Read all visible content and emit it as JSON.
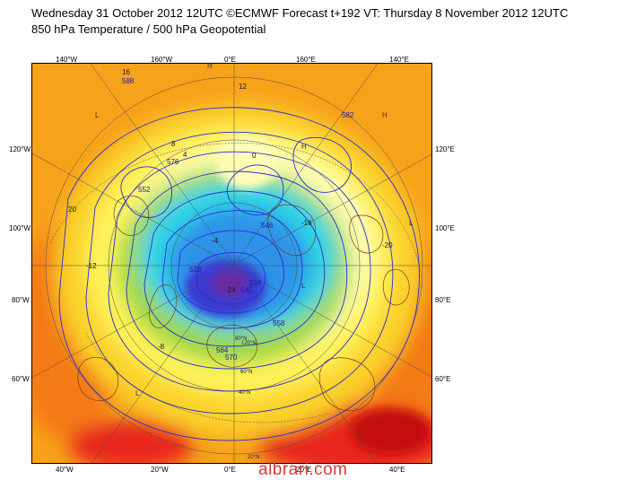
{
  "header": {
    "title_line_1": "Wednesday 31 October 2012 12UTC ©ECMWF Forecast t+192 VT: Thursday 8 November 2012 12UTC",
    "title_line_2": "850 hPa Temperature / 500 hPa Geopotential"
  },
  "map": {
    "lon_labels": {
      "top": [
        "140°W",
        "160°W",
        "0°E",
        "160°E",
        "140°E"
      ],
      "bottom": [
        "40°W",
        "20°W",
        "0°E",
        "20°E",
        "40°E"
      ],
      "left": [
        "120°W",
        "100°W",
        "80°W",
        "60°W"
      ],
      "right": [
        "120°E",
        "100°E",
        "80°E",
        "60°E"
      ]
    },
    "center_labels": [
      "120°N",
      "20°N",
      "80°N",
      "40°N",
      "60°N"
    ],
    "contour_labels": [
      "552",
      "576",
      "528",
      "564",
      "570",
      "540",
      "546",
      "558",
      "534",
      "582",
      "588"
    ],
    "temperature_labels": [
      "16",
      "12",
      "8",
      "4",
      "0",
      "-4",
      "20",
      "-12",
      "-8",
      "-16",
      "-20",
      "-24"
    ],
    "pressure_markers": [
      "H",
      "L"
    ],
    "colors": {
      "ocean_warm": "#f7a21b",
      "deep_warm": "#f47a14",
      "hot": "#e8261c",
      "very_hot": "#c40d0d",
      "mild": "#fbd22a",
      "cool_yellow": "#fff35a",
      "pale": "#fffdb3",
      "green": "#9ed84a",
      "cyan": "#2fd6e6",
      "blue": "#2e93e8",
      "deep_blue": "#3a3ad0",
      "purple": "#6a2aa0",
      "geopotential_line": "#2b2bd9",
      "coastline": "#7a3b1a"
    }
  },
  "watermark": "albrari.com"
}
